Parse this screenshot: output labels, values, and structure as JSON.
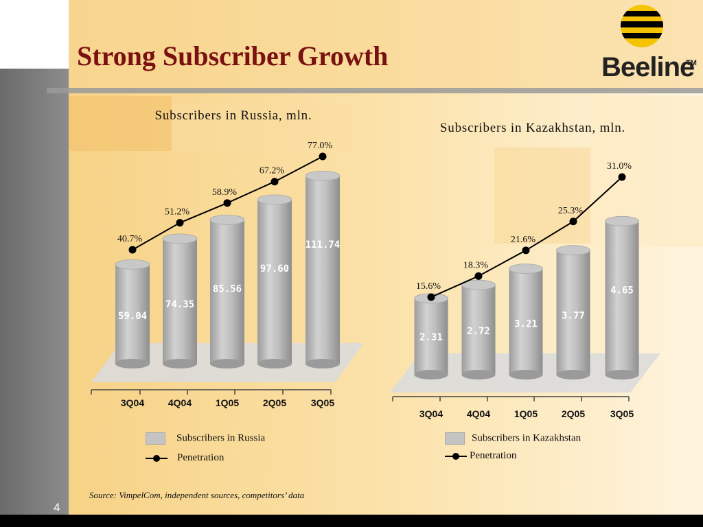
{
  "slide": {
    "title": "Strong Subscriber Growth",
    "brand": "Beeline",
    "brand_tm": "TM",
    "source": "Source: VimpelCom, independent sources, competitors’ data",
    "page_number": "4"
  },
  "colors": {
    "title": "#7a1010",
    "bar": "#b8b8b8",
    "line": "#000000",
    "logo_yellow": "#f5c400",
    "logo_black": "#000000"
  },
  "chart_data": [
    {
      "type": "bar",
      "title": "Subscribers in Russia, mln.",
      "categories": [
        "3Q04",
        "4Q04",
        "1Q05",
        "2Q05",
        "3Q05"
      ],
      "series": [
        {
          "name": "Subscribers in Russia",
          "values": [
            59.04,
            74.35,
            85.56,
            97.6,
            111.74
          ],
          "labels": [
            "59.04",
            "74.35",
            "85.56",
            "97.60",
            "111.74"
          ]
        },
        {
          "name": "Penetration",
          "values": [
            40.7,
            51.2,
            58.9,
            67.2,
            77.0
          ],
          "labels": [
            "40.7%",
            "51.2%",
            "58.9%",
            "67.2%",
            "77.0%"
          ]
        }
      ]
    },
    {
      "type": "bar",
      "title": "Subscribers in Kazakhstan, mln.",
      "categories": [
        "3Q04",
        "4Q04",
        "1Q05",
        "2Q05",
        "3Q05"
      ],
      "series": [
        {
          "name": "Subscribers in Kazakhstan",
          "values": [
            2.31,
            2.72,
            3.21,
            3.77,
            4.65
          ],
          "labels": [
            "2.31",
            "2.72",
            "3.21",
            "3.77",
            "4.65"
          ]
        },
        {
          "name": "Penetration",
          "values": [
            15.6,
            18.3,
            21.6,
            25.3,
            31.0
          ],
          "labels": [
            "15.6%",
            "18.3%",
            "21.6%",
            "25.3%",
            "31.0%"
          ]
        }
      ]
    }
  ]
}
